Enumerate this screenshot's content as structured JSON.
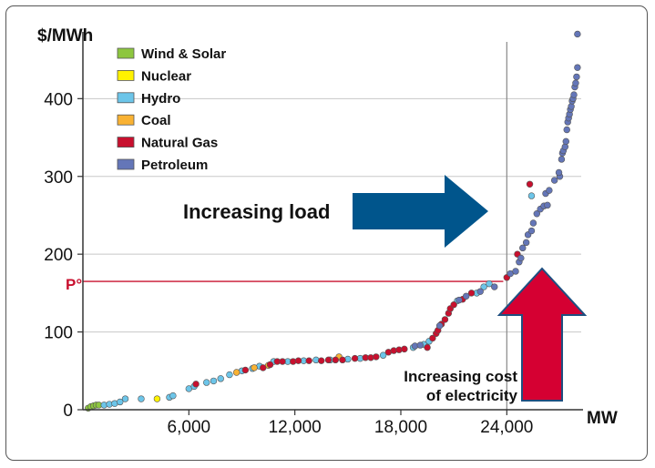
{
  "chart_data": {
    "type": "scatter",
    "title": "",
    "xlabel": "MW",
    "ylabel": "$/MWh",
    "xlim": [
      0,
      27800
    ],
    "ylim": [
      0,
      480
    ],
    "xticks": [
      6000,
      12000,
      18000,
      24000
    ],
    "xtick_labels": [
      "6,000",
      "12,000",
      "18,000",
      "24,000"
    ],
    "yticks": [
      0,
      100,
      200,
      300,
      400
    ],
    "ytick_labels": [
      "0",
      "100",
      "200",
      "300",
      "400"
    ],
    "legend": [
      {
        "name": "Wind & Solar",
        "color": "#8dc63f"
      },
      {
        "name": "Nuclear",
        "color": "#fff200"
      },
      {
        "name": "Hydro",
        "color": "#6cc5e9"
      },
      {
        "name": "Coal",
        "color": "#f9b233"
      },
      {
        "name": "Natural Gas",
        "color": "#c8102e"
      },
      {
        "name": "Petroleum",
        "color": "#6476b8"
      }
    ],
    "series": [
      {
        "name": "Wind & Solar",
        "color": "#8dc63f",
        "points": [
          [
            300,
            2
          ],
          [
            450,
            4
          ],
          [
            600,
            5
          ],
          [
            750,
            6
          ],
          [
            900,
            6
          ]
        ]
      },
      {
        "name": "Nuclear",
        "color": "#fff200",
        "points": [
          [
            4200,
            14
          ]
        ]
      },
      {
        "name": "Hydro",
        "color": "#6cc5e9",
        "points": [
          [
            1200,
            6
          ],
          [
            1500,
            7
          ],
          [
            1800,
            8
          ],
          [
            2100,
            10
          ],
          [
            2400,
            14
          ],
          [
            3300,
            14
          ],
          [
            4900,
            16
          ],
          [
            5100,
            18
          ],
          [
            6000,
            27
          ],
          [
            6300,
            30
          ],
          [
            7000,
            35
          ],
          [
            7400,
            37
          ],
          [
            7800,
            40
          ],
          [
            8300,
            45
          ],
          [
            9000,
            50
          ],
          [
            9600,
            53
          ],
          [
            10000,
            56
          ],
          [
            10800,
            62
          ],
          [
            11600,
            62
          ],
          [
            12500,
            63
          ],
          [
            13200,
            64
          ],
          [
            14000,
            64
          ],
          [
            15000,
            65
          ],
          [
            15700,
            66
          ],
          [
            17000,
            70
          ],
          [
            18700,
            80
          ],
          [
            19300,
            84
          ],
          [
            19600,
            88
          ],
          [
            21200,
            140
          ],
          [
            22300,
            150
          ],
          [
            22700,
            158
          ],
          [
            23000,
            162
          ],
          [
            25400,
            275
          ]
        ]
      },
      {
        "name": "Coal",
        "color": "#f9b233",
        "points": [
          [
            8700,
            48
          ],
          [
            9700,
            54
          ],
          [
            10500,
            57
          ],
          [
            14500,
            68
          ]
        ]
      },
      {
        "name": "Natural Gas",
        "color": "#c8102e",
        "points": [
          [
            6400,
            33
          ],
          [
            9200,
            51
          ],
          [
            10200,
            54
          ],
          [
            10600,
            58
          ],
          [
            11000,
            62
          ],
          [
            11300,
            62
          ],
          [
            11900,
            62
          ],
          [
            12200,
            63
          ],
          [
            12800,
            63
          ],
          [
            13500,
            63
          ],
          [
            13900,
            64
          ],
          [
            14300,
            64
          ],
          [
            14700,
            64
          ],
          [
            15400,
            66
          ],
          [
            16000,
            67
          ],
          [
            16300,
            67
          ],
          [
            16600,
            68
          ],
          [
            17300,
            74
          ],
          [
            17600,
            76
          ],
          [
            17900,
            77
          ],
          [
            18200,
            78
          ],
          [
            19500,
            80
          ],
          [
            19800,
            92
          ],
          [
            20000,
            98
          ],
          [
            20100,
            102
          ],
          [
            20300,
            110
          ],
          [
            20500,
            116
          ],
          [
            20700,
            124
          ],
          [
            20800,
            130
          ],
          [
            21000,
            135
          ],
          [
            21500,
            142
          ],
          [
            22000,
            150
          ],
          [
            24000,
            170
          ],
          [
            24600,
            200
          ],
          [
            25300,
            290
          ]
        ]
      },
      {
        "name": "Petroleum",
        "color": "#6476b8",
        "points": [
          [
            18800,
            82
          ],
          [
            19100,
            83
          ],
          [
            20200,
            108
          ],
          [
            21300,
            141
          ],
          [
            21700,
            146
          ],
          [
            22500,
            152
          ],
          [
            23300,
            158
          ],
          [
            24200,
            175
          ],
          [
            24500,
            178
          ],
          [
            24700,
            190
          ],
          [
            24800,
            195
          ],
          [
            24900,
            208
          ],
          [
            25100,
            215
          ],
          [
            25200,
            225
          ],
          [
            25400,
            230
          ],
          [
            25500,
            240
          ],
          [
            25700,
            252
          ],
          [
            25900,
            258
          ],
          [
            26100,
            262
          ],
          [
            26300,
            263
          ],
          [
            26200,
            278
          ],
          [
            26400,
            282
          ],
          [
            26700,
            295
          ],
          [
            27000,
            300
          ],
          [
            26950,
            305
          ],
          [
            27100,
            322
          ],
          [
            27150,
            330
          ],
          [
            27200,
            333
          ],
          [
            27300,
            338
          ],
          [
            27350,
            345
          ],
          [
            27400,
            360
          ],
          [
            27450,
            370
          ],
          [
            27500,
            375
          ],
          [
            27550,
            380
          ],
          [
            27600,
            386
          ],
          [
            27650,
            390
          ],
          [
            27700,
            397
          ],
          [
            27750,
            400
          ],
          [
            27800,
            405
          ],
          [
            27850,
            415
          ],
          [
            27900,
            420
          ],
          [
            27950,
            428
          ],
          [
            28000,
            440
          ],
          [
            28000,
            483
          ]
        ]
      }
    ],
    "reference_line": {
      "label": "P°",
      "value": 165,
      "color": "#c8102e"
    },
    "vertical_line_at": 24000,
    "annotations": {
      "load_arrow_label": "Increasing load",
      "cost_arrow_label_1": "Increasing cost",
      "cost_arrow_label_2": "of electricity"
    },
    "arrow_colors": {
      "load": "#00558c",
      "cost": "#d50032",
      "cost_outline": "#1e4f80"
    }
  }
}
